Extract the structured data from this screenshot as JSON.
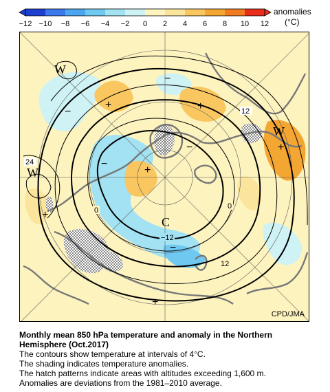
{
  "legend": {
    "ticks": [
      "−12",
      "−10",
      "−8",
      "−6",
      "−4",
      "−2",
      "0",
      "2",
      "4",
      "6",
      "8",
      "10",
      "12"
    ],
    "label_line1": "anomalies",
    "label_line2": "(°C)",
    "colors": [
      "#1c3fd2",
      "#3a78ec",
      "#4aa6ef",
      "#6ec8f0",
      "#a3e2f2",
      "#cff2f4",
      "#fdf3bf",
      "#fbe59c",
      "#f9c660",
      "#f4a633",
      "#f27a20",
      "#ea2c1b"
    ]
  },
  "map": {
    "high_label": "W",
    "low_label": "C",
    "plus_sign": "+",
    "minus_sign": "−",
    "contour_labels": [
      "12",
      "24",
      "0",
      "0",
      "−12",
      "12"
    ],
    "colors": {
      "background": "#fdf3bf",
      "warm_light": "#fbe59c",
      "warm": "#f9c660",
      "warm_strong": "#f4a633",
      "cold_light": "#cff2f4",
      "cold": "#a3e2f2",
      "cold_strong": "#6ec8f0",
      "land_outline": "#777777",
      "hatch": "#8a8a8a"
    },
    "credit": "CPD/JMA"
  },
  "caption": {
    "title": "Monthly mean 850 hPa temperature and anomaly in the Northern Hemisphere (Oct.2017)",
    "lines": [
      "The contours show temperature at intervals of 4°C.",
      "The shading indicates temperature anomalies.",
      "The hatch patterns indicate areas with altitudes exceeding 1,600 m.",
      "Anomalies are deviations from the 1981–2010 average."
    ]
  }
}
